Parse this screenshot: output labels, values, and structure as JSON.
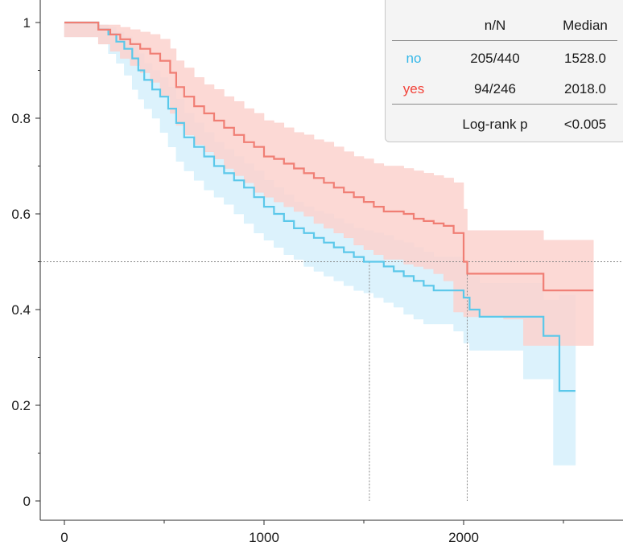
{
  "chart_data": {
    "type": "line",
    "title": "",
    "xlabel": "",
    "ylabel": "",
    "xlim": [
      -150,
      2810
    ],
    "ylim": [
      -0.02,
      1.04
    ],
    "x_ticks": [
      "0",
      "1000",
      "2000"
    ],
    "x_tick_values": [
      0,
      1000,
      2000
    ],
    "y_ticks": [
      "0",
      "0.2",
      "0.4",
      "0.6",
      "0.8",
      "1"
    ],
    "y_tick_values": [
      0,
      0.2,
      0.4,
      0.6,
      0.8,
      1.0
    ],
    "reference_lines": {
      "y": 0.5,
      "medians_x": [
        1528.0,
        2018.0
      ]
    },
    "series": [
      {
        "name": "no",
        "color": "#5bc8ea",
        "fill": "#d6f0fc",
        "step": true,
        "x": [
          0,
          170,
          220,
          260,
          300,
          340,
          370,
          400,
          440,
          480,
          520,
          560,
          600,
          650,
          700,
          750,
          800,
          850,
          900,
          950,
          1000,
          1050,
          1100,
          1150,
          1200,
          1250,
          1300,
          1350,
          1400,
          1450,
          1500,
          1550,
          1600,
          1650,
          1700,
          1750,
          1800,
          1850,
          1900,
          1950,
          2000,
          2030,
          2080,
          2150,
          2300,
          2400,
          2450,
          2480,
          2560
        ],
        "y": [
          1.0,
          0.985,
          0.975,
          0.96,
          0.945,
          0.925,
          0.9,
          0.88,
          0.86,
          0.845,
          0.82,
          0.79,
          0.76,
          0.74,
          0.72,
          0.7,
          0.685,
          0.67,
          0.655,
          0.635,
          0.615,
          0.6,
          0.585,
          0.57,
          0.56,
          0.55,
          0.54,
          0.53,
          0.52,
          0.51,
          0.5,
          0.5,
          0.49,
          0.48,
          0.47,
          0.46,
          0.45,
          0.44,
          0.44,
          0.44,
          0.425,
          0.4,
          0.385,
          0.385,
          0.385,
          0.345,
          0.345,
          0.23,
          0.23
        ],
        "ci_upper": [
          1.0,
          0.995,
          0.99,
          0.98,
          0.97,
          0.955,
          0.935,
          0.915,
          0.9,
          0.885,
          0.865,
          0.84,
          0.81,
          0.79,
          0.77,
          0.75,
          0.735,
          0.72,
          0.705,
          0.69,
          0.67,
          0.655,
          0.64,
          0.625,
          0.615,
          0.605,
          0.6,
          0.59,
          0.58,
          0.57,
          0.565,
          0.56,
          0.555,
          0.545,
          0.54,
          0.53,
          0.52,
          0.51,
          0.51,
          0.51,
          0.5,
          0.47,
          0.455,
          0.455,
          0.455,
          0.42,
          0.42,
          0.43,
          0.43
        ],
        "ci_lower": [
          1.0,
          0.97,
          0.955,
          0.935,
          0.915,
          0.89,
          0.86,
          0.84,
          0.82,
          0.8,
          0.77,
          0.74,
          0.71,
          0.69,
          0.67,
          0.65,
          0.635,
          0.62,
          0.6,
          0.58,
          0.56,
          0.545,
          0.53,
          0.515,
          0.505,
          0.49,
          0.48,
          0.47,
          0.46,
          0.45,
          0.44,
          0.435,
          0.425,
          0.415,
          0.405,
          0.39,
          0.38,
          0.37,
          0.37,
          0.37,
          0.355,
          0.33,
          0.315,
          0.315,
          0.315,
          0.255,
          0.255,
          0.075,
          0.075
        ]
      },
      {
        "name": "yes",
        "color": "#f07e74",
        "fill": "#fbd2ce",
        "step": true,
        "x": [
          0,
          170,
          230,
          280,
          330,
          380,
          430,
          480,
          530,
          560,
          600,
          650,
          700,
          750,
          800,
          850,
          900,
          950,
          1000,
          1050,
          1100,
          1150,
          1200,
          1250,
          1300,
          1350,
          1400,
          1450,
          1500,
          1550,
          1600,
          1700,
          1750,
          1800,
          1850,
          1900,
          1950,
          2000,
          2018,
          2100,
          2200,
          2300,
          2400,
          2650
        ],
        "y": [
          1.0,
          0.985,
          0.975,
          0.965,
          0.955,
          0.945,
          0.935,
          0.92,
          0.895,
          0.865,
          0.845,
          0.825,
          0.81,
          0.795,
          0.78,
          0.765,
          0.75,
          0.74,
          0.72,
          0.715,
          0.705,
          0.695,
          0.685,
          0.675,
          0.665,
          0.655,
          0.645,
          0.635,
          0.625,
          0.615,
          0.605,
          0.6,
          0.59,
          0.585,
          0.58,
          0.575,
          0.56,
          0.5,
          0.475,
          0.475,
          0.475,
          0.475,
          0.44,
          0.44
        ],
        "ci_upper": [
          1.0,
          0.995,
          0.995,
          0.99,
          0.985,
          0.98,
          0.975,
          0.965,
          0.945,
          0.92,
          0.905,
          0.885,
          0.87,
          0.86,
          0.845,
          0.835,
          0.82,
          0.81,
          0.795,
          0.79,
          0.78,
          0.77,
          0.765,
          0.755,
          0.75,
          0.74,
          0.73,
          0.72,
          0.715,
          0.705,
          0.7,
          0.695,
          0.69,
          0.685,
          0.68,
          0.675,
          0.665,
          0.61,
          0.565,
          0.565,
          0.565,
          0.565,
          0.545,
          0.545
        ],
        "ci_lower": [
          1.0,
          0.97,
          0.955,
          0.94,
          0.925,
          0.91,
          0.895,
          0.875,
          0.845,
          0.81,
          0.785,
          0.765,
          0.745,
          0.73,
          0.715,
          0.695,
          0.68,
          0.665,
          0.645,
          0.635,
          0.625,
          0.615,
          0.605,
          0.595,
          0.58,
          0.57,
          0.56,
          0.55,
          0.535,
          0.525,
          0.515,
          0.505,
          0.495,
          0.49,
          0.485,
          0.475,
          0.46,
          0.395,
          0.385,
          0.385,
          0.385,
          0.38,
          0.325,
          0.325
        ]
      }
    ],
    "legend": {
      "placement": "top-right",
      "headers": [
        "",
        "n/N",
        "Median"
      ],
      "rows": [
        {
          "label": "no",
          "label_color": "#36b8e8",
          "n_of_N": "205/440",
          "median": "1528.0"
        },
        {
          "label": "yes",
          "label_color": "#f2433a",
          "n_of_N": "94/246",
          "median": "2018.0"
        }
      ],
      "footer": {
        "label": "Log-rank p",
        "value": "<0.005"
      }
    }
  }
}
